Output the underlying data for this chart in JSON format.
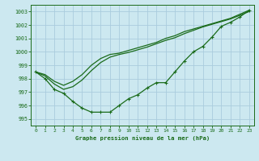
{
  "title": "Graphe pression niveau de la mer (hPa)",
  "bg_color": "#cce8f0",
  "grid_color": "#aaccdd",
  "line_color": "#1a6b1a",
  "xlim": [
    -0.5,
    23.5
  ],
  "ylim": [
    994.5,
    1003.5
  ],
  "yticks": [
    995,
    996,
    997,
    998,
    999,
    1000,
    1001,
    1002,
    1003
  ],
  "xticks": [
    0,
    1,
    2,
    3,
    4,
    5,
    6,
    7,
    8,
    9,
    10,
    11,
    12,
    13,
    14,
    15,
    16,
    17,
    18,
    19,
    20,
    21,
    22,
    23
  ],
  "series1": [
    998.5,
    998.0,
    997.2,
    996.9,
    996.3,
    995.8,
    995.5,
    995.5,
    995.5,
    996.0,
    996.5,
    996.8,
    997.3,
    997.7,
    997.7,
    998.5,
    999.3,
    1000.0,
    1000.4,
    1001.1,
    1001.9,
    1002.2,
    1002.6,
    1003.1
  ],
  "series2": [
    998.5,
    998.3,
    997.8,
    997.5,
    997.8,
    998.3,
    999.0,
    999.5,
    999.8,
    999.9,
    1000.1,
    1000.3,
    1000.5,
    1000.7,
    1001.0,
    1001.2,
    1001.5,
    1001.7,
    1001.9,
    1002.1,
    1002.3,
    1002.5,
    1002.8,
    1003.1
  ],
  "series3": [
    998.5,
    998.2,
    997.6,
    997.2,
    997.4,
    997.9,
    998.6,
    999.2,
    999.6,
    999.8,
    999.95,
    1000.15,
    1000.35,
    1000.6,
    1000.85,
    1001.05,
    1001.35,
    1001.6,
    1001.85,
    1002.05,
    1002.25,
    1002.45,
    1002.72,
    1003.0
  ]
}
